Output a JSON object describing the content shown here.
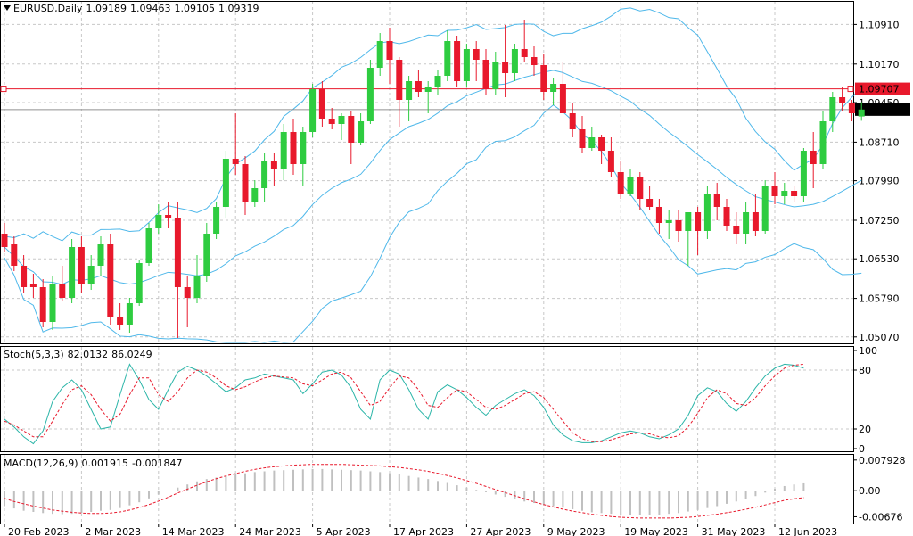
{
  "symbol_line": {
    "symbol": "EURUSD,Daily",
    "open": "1.09189",
    "high": "1.09463",
    "low": "1.09105",
    "close": "1.09319"
  },
  "stoch_header": {
    "name": "Stoch(5,3,3)",
    "k": "82.0132",
    "d": "86.0249"
  },
  "macd_header": {
    "name": "MACD(12,26,9)",
    "main": "0.001915",
    "signal": "-0.001847"
  },
  "colors": {
    "bull": "#2ecc40",
    "bear": "#e8192c",
    "bands": "#4fb8ea",
    "stoch_main": "#2bb5a8",
    "signal": "#e8192c",
    "grid": "#c8c8c8",
    "hline": "#e8192c",
    "histogram": "#c0c0c0"
  },
  "chart_data": [
    {
      "type": "candlestick",
      "title": "EURUSD,Daily",
      "ylim": [
        1.0495,
        1.1135
      ],
      "y_ticks": [
        "1.10910",
        "1.10170",
        "1.09450",
        "1.08710",
        "1.07990",
        "1.07250",
        "1.06530",
        "1.05790",
        "1.05070"
      ],
      "x_ticks": [
        "20 Feb 2023",
        "2 Mar 2023",
        "14 Mar 2023",
        "24 Mar 2023",
        "5 Apr 2023",
        "17 Apr 2023",
        "27 Apr 2023",
        "9 May 2023",
        "19 May 2023",
        "31 May 2023",
        "12 Jun 2023"
      ],
      "x_tick_index": [
        0,
        8,
        16,
        24,
        32,
        40,
        48,
        56,
        64,
        72,
        80
      ],
      "horizontal_line": {
        "value": 1.09707,
        "label": "1.09707"
      },
      "last_price": {
        "value": 1.09319,
        "label": "1.09319"
      },
      "series_ohlc": [
        [
          1.07,
          1.072,
          1.0665,
          1.0675
        ],
        [
          1.068,
          1.0695,
          1.063,
          1.064
        ],
        [
          1.064,
          1.066,
          1.059,
          1.06
        ],
        [
          1.0605,
          1.0625,
          1.058,
          1.06
        ],
        [
          1.06,
          1.0615,
          1.0525,
          1.0535
        ],
        [
          1.0535,
          1.062,
          1.052,
          1.0605
        ],
        [
          1.0605,
          1.064,
          1.0575,
          1.058
        ],
        [
          1.058,
          1.069,
          1.057,
          1.0675
        ],
        [
          1.0675,
          1.0695,
          1.059,
          1.0605
        ],
        [
          1.0605,
          1.066,
          1.0595,
          1.064
        ],
        [
          1.064,
          1.0695,
          1.062,
          1.068
        ],
        [
          1.068,
          1.07,
          1.053,
          1.0545
        ],
        [
          1.0545,
          1.057,
          1.052,
          1.053
        ],
        [
          1.053,
          1.058,
          1.0515,
          1.057
        ],
        [
          1.057,
          1.065,
          1.0565,
          1.0645
        ],
        [
          1.0645,
          1.072,
          1.064,
          1.071
        ],
        [
          1.071,
          1.0755,
          1.07,
          1.0735
        ],
        [
          1.0735,
          1.076,
          1.071,
          1.073
        ],
        [
          1.073,
          1.076,
          1.0505,
          1.06
        ],
        [
          1.06,
          1.062,
          1.0525,
          1.058
        ],
        [
          1.058,
          1.066,
          1.057,
          1.062
        ],
        [
          1.062,
          1.072,
          1.061,
          1.07
        ],
        [
          1.07,
          1.076,
          1.069,
          1.075
        ],
        [
          1.075,
          1.0855,
          1.073,
          1.084
        ],
        [
          1.084,
          1.0925,
          1.081,
          1.083
        ],
        [
          1.083,
          1.0845,
          1.0735,
          1.076
        ],
        [
          1.076,
          1.08,
          1.075,
          1.0785
        ],
        [
          1.0785,
          1.085,
          1.076,
          1.0835
        ],
        [
          1.0835,
          1.085,
          1.079,
          1.082
        ],
        [
          1.082,
          1.0905,
          1.08,
          1.089
        ],
        [
          1.089,
          1.0915,
          1.081,
          1.083
        ],
        [
          1.083,
          1.09,
          1.079,
          1.089
        ],
        [
          1.089,
          1.098,
          1.088,
          1.097
        ],
        [
          1.097,
          1.0985,
          1.09,
          1.0915
        ],
        [
          1.0915,
          1.0935,
          1.0895,
          1.0905
        ],
        [
          1.0905,
          1.0925,
          1.0875,
          1.092
        ],
        [
          1.092,
          1.093,
          1.083,
          1.087
        ],
        [
          1.087,
          1.0925,
          1.0865,
          1.091
        ],
        [
          1.091,
          1.1025,
          1.0905,
          1.101
        ],
        [
          1.101,
          1.1075,
          1.0995,
          1.106
        ],
        [
          1.106,
          1.1085,
          1.098,
          1.1025
        ],
        [
          1.1025,
          1.103,
          1.09,
          1.095
        ],
        [
          1.095,
          1.0995,
          1.091,
          1.0985
        ],
        [
          1.0985,
          1.1005,
          1.0955,
          1.0965
        ],
        [
          1.0965,
          1.0985,
          1.0925,
          1.0975
        ],
        [
          1.0975,
          1.1005,
          1.096,
          1.0995
        ],
        [
          1.0995,
          1.108,
          1.0985,
          1.106
        ],
        [
          1.106,
          1.107,
          1.0975,
          1.0985
        ],
        [
          1.0985,
          1.1055,
          1.0975,
          1.1045
        ],
        [
          1.1045,
          1.106,
          1.0985,
          1.1025
        ],
        [
          1.1025,
          1.1045,
          1.096,
          1.097
        ],
        [
          1.097,
          1.104,
          1.096,
          1.102
        ],
        [
          1.102,
          1.109,
          1.0955,
          1.1
        ],
        [
          1.1,
          1.1055,
          1.0985,
          1.1045
        ],
        [
          1.1045,
          1.11,
          1.102,
          1.103
        ],
        [
          1.103,
          1.105,
          1.0995,
          1.1015
        ],
        [
          1.1015,
          1.1035,
          1.095,
          1.0965
        ],
        [
          1.0965,
          1.099,
          1.094,
          1.098
        ],
        [
          1.098,
          1.102,
          1.0965,
          1.0925
        ],
        [
          1.0925,
          1.0945,
          1.088,
          1.0895
        ],
        [
          1.0895,
          1.092,
          1.085,
          1.086
        ],
        [
          1.086,
          1.09,
          1.0855,
          1.088
        ],
        [
          1.088,
          1.0885,
          1.083,
          1.0855
        ],
        [
          1.0855,
          1.088,
          1.0805,
          1.0815
        ],
        [
          1.0815,
          1.0835,
          1.0765,
          1.0775
        ],
        [
          1.0775,
          1.082,
          1.077,
          1.0805
        ],
        [
          1.0805,
          1.0815,
          1.0745,
          1.0765
        ],
        [
          1.0765,
          1.079,
          1.0745,
          1.075
        ],
        [
          1.075,
          1.0765,
          1.07,
          1.072
        ],
        [
          1.072,
          1.0745,
          1.069,
          1.0725
        ],
        [
          1.0725,
          1.0745,
          1.0685,
          1.0705
        ],
        [
          1.0705,
          1.0735,
          1.064,
          1.074
        ],
        [
          1.074,
          1.075,
          1.066,
          1.0705
        ],
        [
          1.0705,
          1.079,
          1.069,
          1.0775
        ],
        [
          1.0775,
          1.0795,
          1.0725,
          1.075
        ],
        [
          1.075,
          1.0765,
          1.0705,
          1.0715
        ],
        [
          1.0715,
          1.074,
          1.068,
          1.07
        ],
        [
          1.07,
          1.076,
          1.068,
          1.074
        ],
        [
          1.074,
          1.0775,
          1.0695,
          1.0705
        ],
        [
          1.0705,
          1.08,
          1.07,
          1.079
        ],
        [
          1.079,
          1.0815,
          1.0755,
          1.077
        ],
        [
          1.077,
          1.0795,
          1.0755,
          1.078
        ],
        [
          1.078,
          1.079,
          1.076,
          1.077
        ],
        [
          1.077,
          1.086,
          1.076,
          1.0855
        ],
        [
          1.0855,
          1.089,
          1.0785,
          1.083
        ],
        [
          1.083,
          1.093,
          1.082,
          1.091
        ],
        [
          1.091,
          1.0965,
          1.089,
          1.0955
        ],
        [
          1.0955,
          1.0975,
          1.093,
          1.0945
        ],
        [
          1.0945,
          1.095,
          1.091,
          1.0925
        ],
        [
          1.0919,
          1.0946,
          1.0911,
          1.0932
        ]
      ]
    },
    {
      "type": "line",
      "title": "Stoch(5,3,3)",
      "ylim": [
        0,
        100
      ],
      "y_ticks": [
        "100",
        "80",
        "20",
        "0"
      ],
      "levels": [
        80,
        20
      ],
      "series": [
        {
          "name": "Main",
          "values": [
            30,
            22,
            12,
            5,
            18,
            48,
            62,
            70,
            60,
            40,
            20,
            22,
            55,
            86,
            70,
            50,
            40,
            60,
            78,
            84,
            80,
            74,
            66,
            58,
            62,
            70,
            72,
            76,
            74,
            72,
            70,
            56,
            66,
            78,
            80,
            75,
            62,
            40,
            30,
            70,
            80,
            76,
            60,
            40,
            30,
            58,
            65,
            60,
            52,
            42,
            34,
            44,
            50,
            56,
            60,
            54,
            42,
            24,
            14,
            8,
            6,
            6,
            8,
            12,
            16,
            18,
            16,
            12,
            10,
            14,
            20,
            34,
            54,
            62,
            58,
            46,
            38,
            48,
            62,
            74,
            82,
            86,
            85,
            82
          ]
        },
        {
          "name": "Signal",
          "values": [
            28,
            24,
            18,
            12,
            12,
            28,
            45,
            60,
            64,
            55,
            40,
            28,
            35,
            55,
            72,
            72,
            55,
            48,
            58,
            72,
            80,
            78,
            72,
            64,
            60,
            63,
            68,
            72,
            74,
            73,
            72,
            66,
            64,
            70,
            76,
            78,
            72,
            58,
            44,
            48,
            62,
            74,
            72,
            60,
            44,
            42,
            52,
            60,
            58,
            50,
            42,
            40,
            44,
            50,
            56,
            58,
            52,
            40,
            28,
            16,
            10,
            7,
            7,
            9,
            12,
            15,
            16,
            15,
            12,
            11,
            13,
            22,
            36,
            52,
            60,
            56,
            46,
            44,
            52,
            64,
            74,
            82,
            85,
            86
          ]
        }
      ]
    },
    {
      "type": "bar",
      "title": "MACD(12,26,9)",
      "ylim": [
        -0.0085,
        0.0095
      ],
      "y_ticks": [
        "0.007928",
        "0.00",
        "-0.00676"
      ],
      "series": [
        {
          "name": "Main",
          "values": [
            -0.004,
            -0.0046,
            -0.0052,
            -0.0055,
            -0.0058,
            -0.006,
            -0.0061,
            -0.006,
            -0.0058,
            -0.0055,
            -0.0052,
            -0.005,
            -0.0045,
            -0.0038,
            -0.003,
            -0.002,
            -0.001,
            0.0,
            0.0008,
            0.0016,
            0.0024,
            0.003,
            0.0034,
            0.0038,
            0.0042,
            0.0045,
            0.0048,
            0.005,
            0.0052,
            0.0053,
            0.0054,
            0.0055,
            0.0056,
            0.0056,
            0.0055,
            0.0054,
            0.0053,
            0.0052,
            0.005,
            0.0048,
            0.0045,
            0.0042,
            0.0038,
            0.0034,
            0.003,
            0.0025,
            0.002,
            0.0014,
            0.0008,
            0.0002,
            -0.0004,
            -0.001,
            -0.0016,
            -0.0022,
            -0.0028,
            -0.0032,
            -0.0036,
            -0.004,
            -0.0044,
            -0.0048,
            -0.0052,
            -0.0056,
            -0.0058,
            -0.006,
            -0.0062,
            -0.0063,
            -0.0064,
            -0.0063,
            -0.0062,
            -0.006,
            -0.0058,
            -0.0054,
            -0.005,
            -0.0045,
            -0.004,
            -0.0034,
            -0.0028,
            -0.0022,
            -0.0014,
            -0.0005,
            0.0005,
            0.0012,
            0.0016,
            0.0019
          ]
        },
        {
          "name": "Signal",
          "values": [
            -0.002,
            -0.0028,
            -0.0034,
            -0.004,
            -0.0045,
            -0.005,
            -0.0053,
            -0.0056,
            -0.0058,
            -0.0059,
            -0.0059,
            -0.0058,
            -0.0055,
            -0.005,
            -0.0044,
            -0.0036,
            -0.0027,
            -0.0017,
            -0.0006,
            0.0004,
            0.0014,
            0.0023,
            0.0031,
            0.0038,
            0.0044,
            0.005,
            0.0055,
            0.0059,
            0.0062,
            0.0064,
            0.0066,
            0.0067,
            0.0068,
            0.0068,
            0.0068,
            0.0068,
            0.0067,
            0.0066,
            0.0065,
            0.0064,
            0.0062,
            0.006,
            0.0057,
            0.0054,
            0.005,
            0.0045,
            0.0039,
            0.0033,
            0.0026,
            0.0019,
            0.0011,
            0.0003,
            -0.0005,
            -0.0013,
            -0.0021,
            -0.0029,
            -0.0036,
            -0.0042,
            -0.0048,
            -0.0053,
            -0.0057,
            -0.0061,
            -0.0064,
            -0.0067,
            -0.0069,
            -0.007,
            -0.0071,
            -0.0071,
            -0.0071,
            -0.0071,
            -0.007,
            -0.0069,
            -0.0067,
            -0.0064,
            -0.0061,
            -0.0057,
            -0.0053,
            -0.0048,
            -0.0043,
            -0.0037,
            -0.0031,
            -0.0025,
            -0.0021,
            -0.0018
          ]
        }
      ]
    }
  ]
}
